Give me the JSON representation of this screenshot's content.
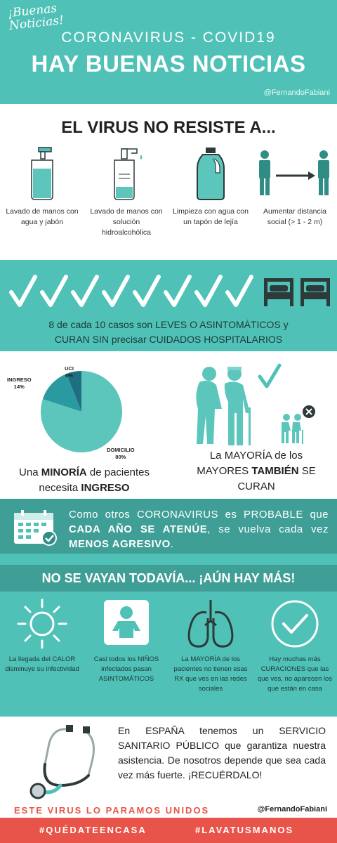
{
  "header": {
    "script_text": "¡Buenas Noticias!",
    "subtitle": "CORONAVIRUS - COVID19",
    "title": "HAY BUENAS NOTICIAS",
    "handle": "@FernandoFabiani"
  },
  "virus_section": {
    "title": "EL VIRUS NO RESISTE A...",
    "items": [
      {
        "icon": "soap-bottle-icon",
        "text": "Lavado de manos con agua y jabón"
      },
      {
        "icon": "sanitizer-icon",
        "text": "Lavado de manos con solución hidroalcohólica"
      },
      {
        "icon": "bleach-bottle-icon",
        "text": "Limpieza con agua con un tapón de lejía"
      },
      {
        "icon": "distance-icon",
        "text": "Aumentar distancia social  (> 1 - 2 m)"
      }
    ]
  },
  "cases": {
    "checks_count": 8,
    "beds_count": 2,
    "text_line1": "8 de cada 10 casos son LEVES O ASINTOMÁTICOS y",
    "text_line2": "CURAN SIN precisar CUIDADOS HOSPITALARIOS"
  },
  "chart_data": {
    "type": "pie",
    "slices": [
      {
        "label": "DOMICILIO",
        "value": 80,
        "value_text": "80%",
        "color": "#5cc6bd"
      },
      {
        "label": "INGRESO",
        "value": 14,
        "value_text": "14%",
        "color": "#2b9aa0"
      },
      {
        "label": "UCI",
        "value": 6,
        "value_text": "6%",
        "color": "#1e6f82"
      }
    ]
  },
  "minority": {
    "pre": "Una ",
    "bold1": "MINORÍA",
    "mid": " de pacientes",
    "line2_pre": "necesita ",
    "bold2": "INGRESO"
  },
  "elderly": {
    "line1": "La MAYORÍA de los",
    "line2_pre": "MAYORES ",
    "bold": "TAMBIÉN",
    "line2_post": " SE",
    "line3": "CURAN"
  },
  "probable": {
    "pre": "Como otros CORONAVIRUS es PROBABLE que ",
    "bold1": "CADA AÑO SE ATENÚE",
    "mid": ", se vuelva cada vez ",
    "bold2": "MENOS AGRESIVO",
    "post": "."
  },
  "more": {
    "banner": "NO SE VAYAN TODAVÍA... ¡AÚN HAY MÁS!",
    "items": [
      {
        "icon": "sun-icon",
        "text": "La llegada del CALOR disminuye su infectividad"
      },
      {
        "icon": "baby-icon",
        "text": "Casi todos los NIÑOS infectados pasan ASINTOMÁTICOS"
      },
      {
        "icon": "lungs-icon",
        "text": "La MAYORÍA de los pacientes no tienen esas RX que ves en las redes sociales"
      },
      {
        "icon": "check-circle-icon",
        "text": "Hay muchas más CURACIONES que las que ves, no aparecen los que están en casa"
      }
    ]
  },
  "spain": {
    "text": "En ESPAÑA tenemos un SERVICIO SANITARIO PÚBLICO que garantiza nuestra asistencia. De nosotros depende que sea cada vez más fuerte. ¡RECUÉRDALO!",
    "bottom_line": "ESTE VIRUS LO PARAMOS UNIDOS",
    "handle": "@FernandoFabiani"
  },
  "footer": {
    "tag1": "#QUÉDATEENCASA",
    "tag2": "#LAVATUSMANOS"
  },
  "colors": {
    "teal": "#4fc1b7",
    "dark_teal": "#3f9e96",
    "red": "#e8544a",
    "icon_dark": "#2e3a3a"
  }
}
